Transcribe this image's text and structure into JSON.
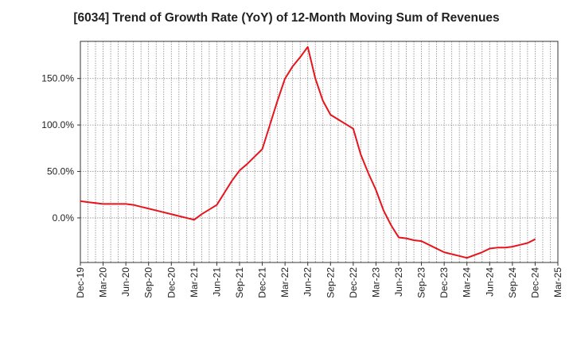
{
  "chart_data": {
    "type": "line",
    "title": "[6034]  Trend of Growth Rate (YoY) of 12-Month Moving Sum of Revenues",
    "xlabel": "",
    "ylabel": "",
    "grid": true,
    "ylim": [
      -48,
      190
    ],
    "y_ticks": [
      {
        "value": 150,
        "label": "150.0%"
      },
      {
        "value": 100,
        "label": "100.0%"
      },
      {
        "value": 50,
        "label": "50.0%"
      },
      {
        "value": 0,
        "label": "0.0%"
      }
    ],
    "x_ticks": [
      "Dec-19",
      "Mar-20",
      "Jun-20",
      "Sep-20",
      "Dec-20",
      "Mar-21",
      "Jun-21",
      "Sep-21",
      "Dec-21",
      "Mar-22",
      "Jun-22",
      "Sep-22",
      "Dec-22",
      "Mar-23",
      "Jun-23",
      "Sep-23",
      "Dec-23",
      "Mar-24",
      "Jun-24",
      "Sep-24",
      "Dec-24",
      "Mar-25"
    ],
    "line_color": "#e8141c",
    "series": [
      {
        "x": [
          "Dec-19",
          "Jan-20",
          "Feb-20",
          "Mar-20",
          "Apr-20",
          "May-20",
          "Jun-20",
          "Jul-20",
          "Aug-20",
          "Sep-20",
          "Oct-20",
          "Nov-20",
          "Dec-20",
          "Jan-21",
          "Feb-21",
          "Mar-21",
          "Apr-21",
          "May-21",
          "Jun-21",
          "Jul-21",
          "Aug-21",
          "Sep-21",
          "Oct-21",
          "Nov-21",
          "Dec-21",
          "Jan-22",
          "Feb-22",
          "Mar-22",
          "Apr-22",
          "May-22",
          "Jun-22",
          "Jul-22",
          "Aug-22",
          "Sep-22",
          "Oct-22",
          "Nov-22",
          "Dec-22",
          "Jan-23",
          "Feb-23",
          "Mar-23",
          "Apr-23",
          "May-23",
          "Jun-23",
          "Jul-23",
          "Aug-23",
          "Sep-23",
          "Oct-23",
          "Nov-23",
          "Dec-23",
          "Jan-24",
          "Feb-24",
          "Mar-24",
          "Apr-24",
          "May-24",
          "Jun-24",
          "Jul-24",
          "Aug-24",
          "Sep-24",
          "Oct-24",
          "Nov-24",
          "Dec-24"
        ],
        "values": [
          18,
          17,
          16,
          15,
          15,
          15,
          15,
          14,
          12,
          10,
          8,
          6,
          4,
          2,
          0,
          -2,
          4,
          9,
          14,
          27,
          40,
          51,
          58,
          66,
          74,
          100,
          126,
          150,
          163,
          173,
          184,
          150,
          126,
          111,
          106,
          101,
          96,
          68,
          48,
          30,
          8,
          -8,
          -21,
          -22,
          -24,
          -25,
          -29,
          -33,
          -37,
          -39,
          -41,
          -43,
          -40,
          -37,
          -33,
          -32,
          -32,
          -31,
          -29,
          -27,
          -23
        ]
      }
    ]
  }
}
